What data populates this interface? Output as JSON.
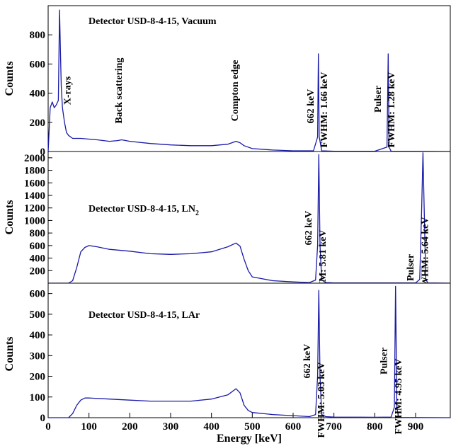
{
  "chart_data": [
    {
      "type": "line",
      "title": "Detector USD-8-4-15, Vacuum",
      "ylabel": "Counts",
      "xlabel": "",
      "xlim": [
        0,
        985
      ],
      "ylim": [
        0,
        1000
      ],
      "yticks": [
        0,
        200,
        400,
        600,
        800
      ],
      "series_color": "#1a1aa8",
      "series": [
        {
          "x": [
            0,
            5,
            10,
            15,
            20,
            25,
            28,
            30,
            32,
            35,
            40,
            45,
            50,
            60,
            80,
            100,
            120,
            150,
            170,
            180,
            200,
            250,
            300,
            350,
            400,
            440,
            460,
            470,
            480,
            500,
            550,
            600,
            650,
            660,
            662,
            664,
            670,
            700,
            800,
            830,
            833,
            835,
            840,
            900,
            985
          ],
          "y": [
            0,
            300,
            340,
            300,
            320,
            350,
            970,
            700,
            450,
            300,
            200,
            130,
            110,
            90,
            90,
            85,
            80,
            70,
            75,
            80,
            70,
            55,
            45,
            40,
            40,
            50,
            70,
            60,
            40,
            20,
            10,
            5,
            5,
            100,
            670,
            100,
            5,
            2,
            2,
            30,
            670,
            30,
            2,
            1,
            0
          ]
        }
      ],
      "annotations": [
        {
          "text": "X-rays",
          "x": 55
        },
        {
          "text": "Back scattering",
          "x": 180
        },
        {
          "text": "Compton edge",
          "x": 465
        },
        {
          "text": "662 keV",
          "x": 650
        },
        {
          "text": "FWHM: 1.66 keV",
          "x": 683
        },
        {
          "text": "Pulser",
          "x": 815
        },
        {
          "text": "FWHM: 1.28 keV",
          "x": 848
        }
      ]
    },
    {
      "type": "line",
      "title": "Detector USD-8-4-15, LN",
      "title_sub": "2",
      "ylabel": "Counts",
      "xlabel": "",
      "xlim": [
        0,
        985
      ],
      "ylim": [
        0,
        2100
      ],
      "yticks": [
        200,
        400,
        600,
        800,
        1000,
        1200,
        1400,
        1600,
        1800,
        2000
      ],
      "series_color": "#1a1aa8",
      "series": [
        {
          "x": [
            0,
            50,
            60,
            70,
            80,
            90,
            100,
            120,
            150,
            200,
            250,
            300,
            350,
            400,
            440,
            460,
            470,
            480,
            490,
            500,
            550,
            600,
            640,
            655,
            660,
            663,
            666,
            670,
            680,
            700,
            800,
            900,
            910,
            915,
            918,
            921,
            925,
            930,
            985
          ],
          "y": [
            0,
            0,
            40,
            250,
            500,
            570,
            600,
            580,
            540,
            510,
            470,
            460,
            470,
            500,
            580,
            640,
            590,
            380,
            200,
            100,
            40,
            20,
            10,
            50,
            600,
            2050,
            600,
            50,
            10,
            5,
            3,
            5,
            60,
            1200,
            2080,
            1200,
            60,
            5,
            0
          ]
        }
      ],
      "annotations": [
        {
          "text": "662 keV",
          "x": 645
        },
        {
          "text": "FWHM: 5.81 keV",
          "x": 680
        },
        {
          "text": "Pulser",
          "x": 895
        },
        {
          "text": "FWHM: 5.64 keV",
          "x": 930
        }
      ]
    },
    {
      "type": "line",
      "title": "Detector USD-8-4-15, LAr",
      "ylabel": "Counts",
      "xlabel": "Energy [keV]",
      "xlim": [
        0,
        985
      ],
      "ylim": [
        0,
        650
      ],
      "yticks": [
        0,
        100,
        200,
        300,
        400,
        500,
        600
      ],
      "xticks": [
        0,
        100,
        200,
        300,
        400,
        500,
        600,
        700,
        800,
        900
      ],
      "series_color": "#1a1aa8",
      "series": [
        {
          "x": [
            0,
            50,
            60,
            70,
            80,
            90,
            100,
            150,
            200,
            250,
            300,
            350,
            400,
            440,
            460,
            470,
            480,
            490,
            500,
            550,
            600,
            640,
            655,
            660,
            663,
            666,
            670,
            680,
            700,
            800,
            840,
            848,
            851,
            854,
            858,
            865,
            985
          ],
          "y": [
            0,
            0,
            20,
            60,
            85,
            95,
            95,
            90,
            85,
            80,
            80,
            80,
            90,
            110,
            140,
            120,
            60,
            35,
            25,
            15,
            10,
            5,
            15,
            200,
            615,
            200,
            15,
            5,
            3,
            2,
            3,
            50,
            635,
            50,
            3,
            1,
            0
          ]
        }
      ],
      "annotations": [
        {
          "text": "662 keV",
          "x": 642
        },
        {
          "text": "FWHM: 5.03 keV",
          "x": 676
        },
        {
          "text": "Pulser",
          "x": 830
        },
        {
          "text": "FWHM: 4.95 keV",
          "x": 865
        }
      ]
    }
  ]
}
